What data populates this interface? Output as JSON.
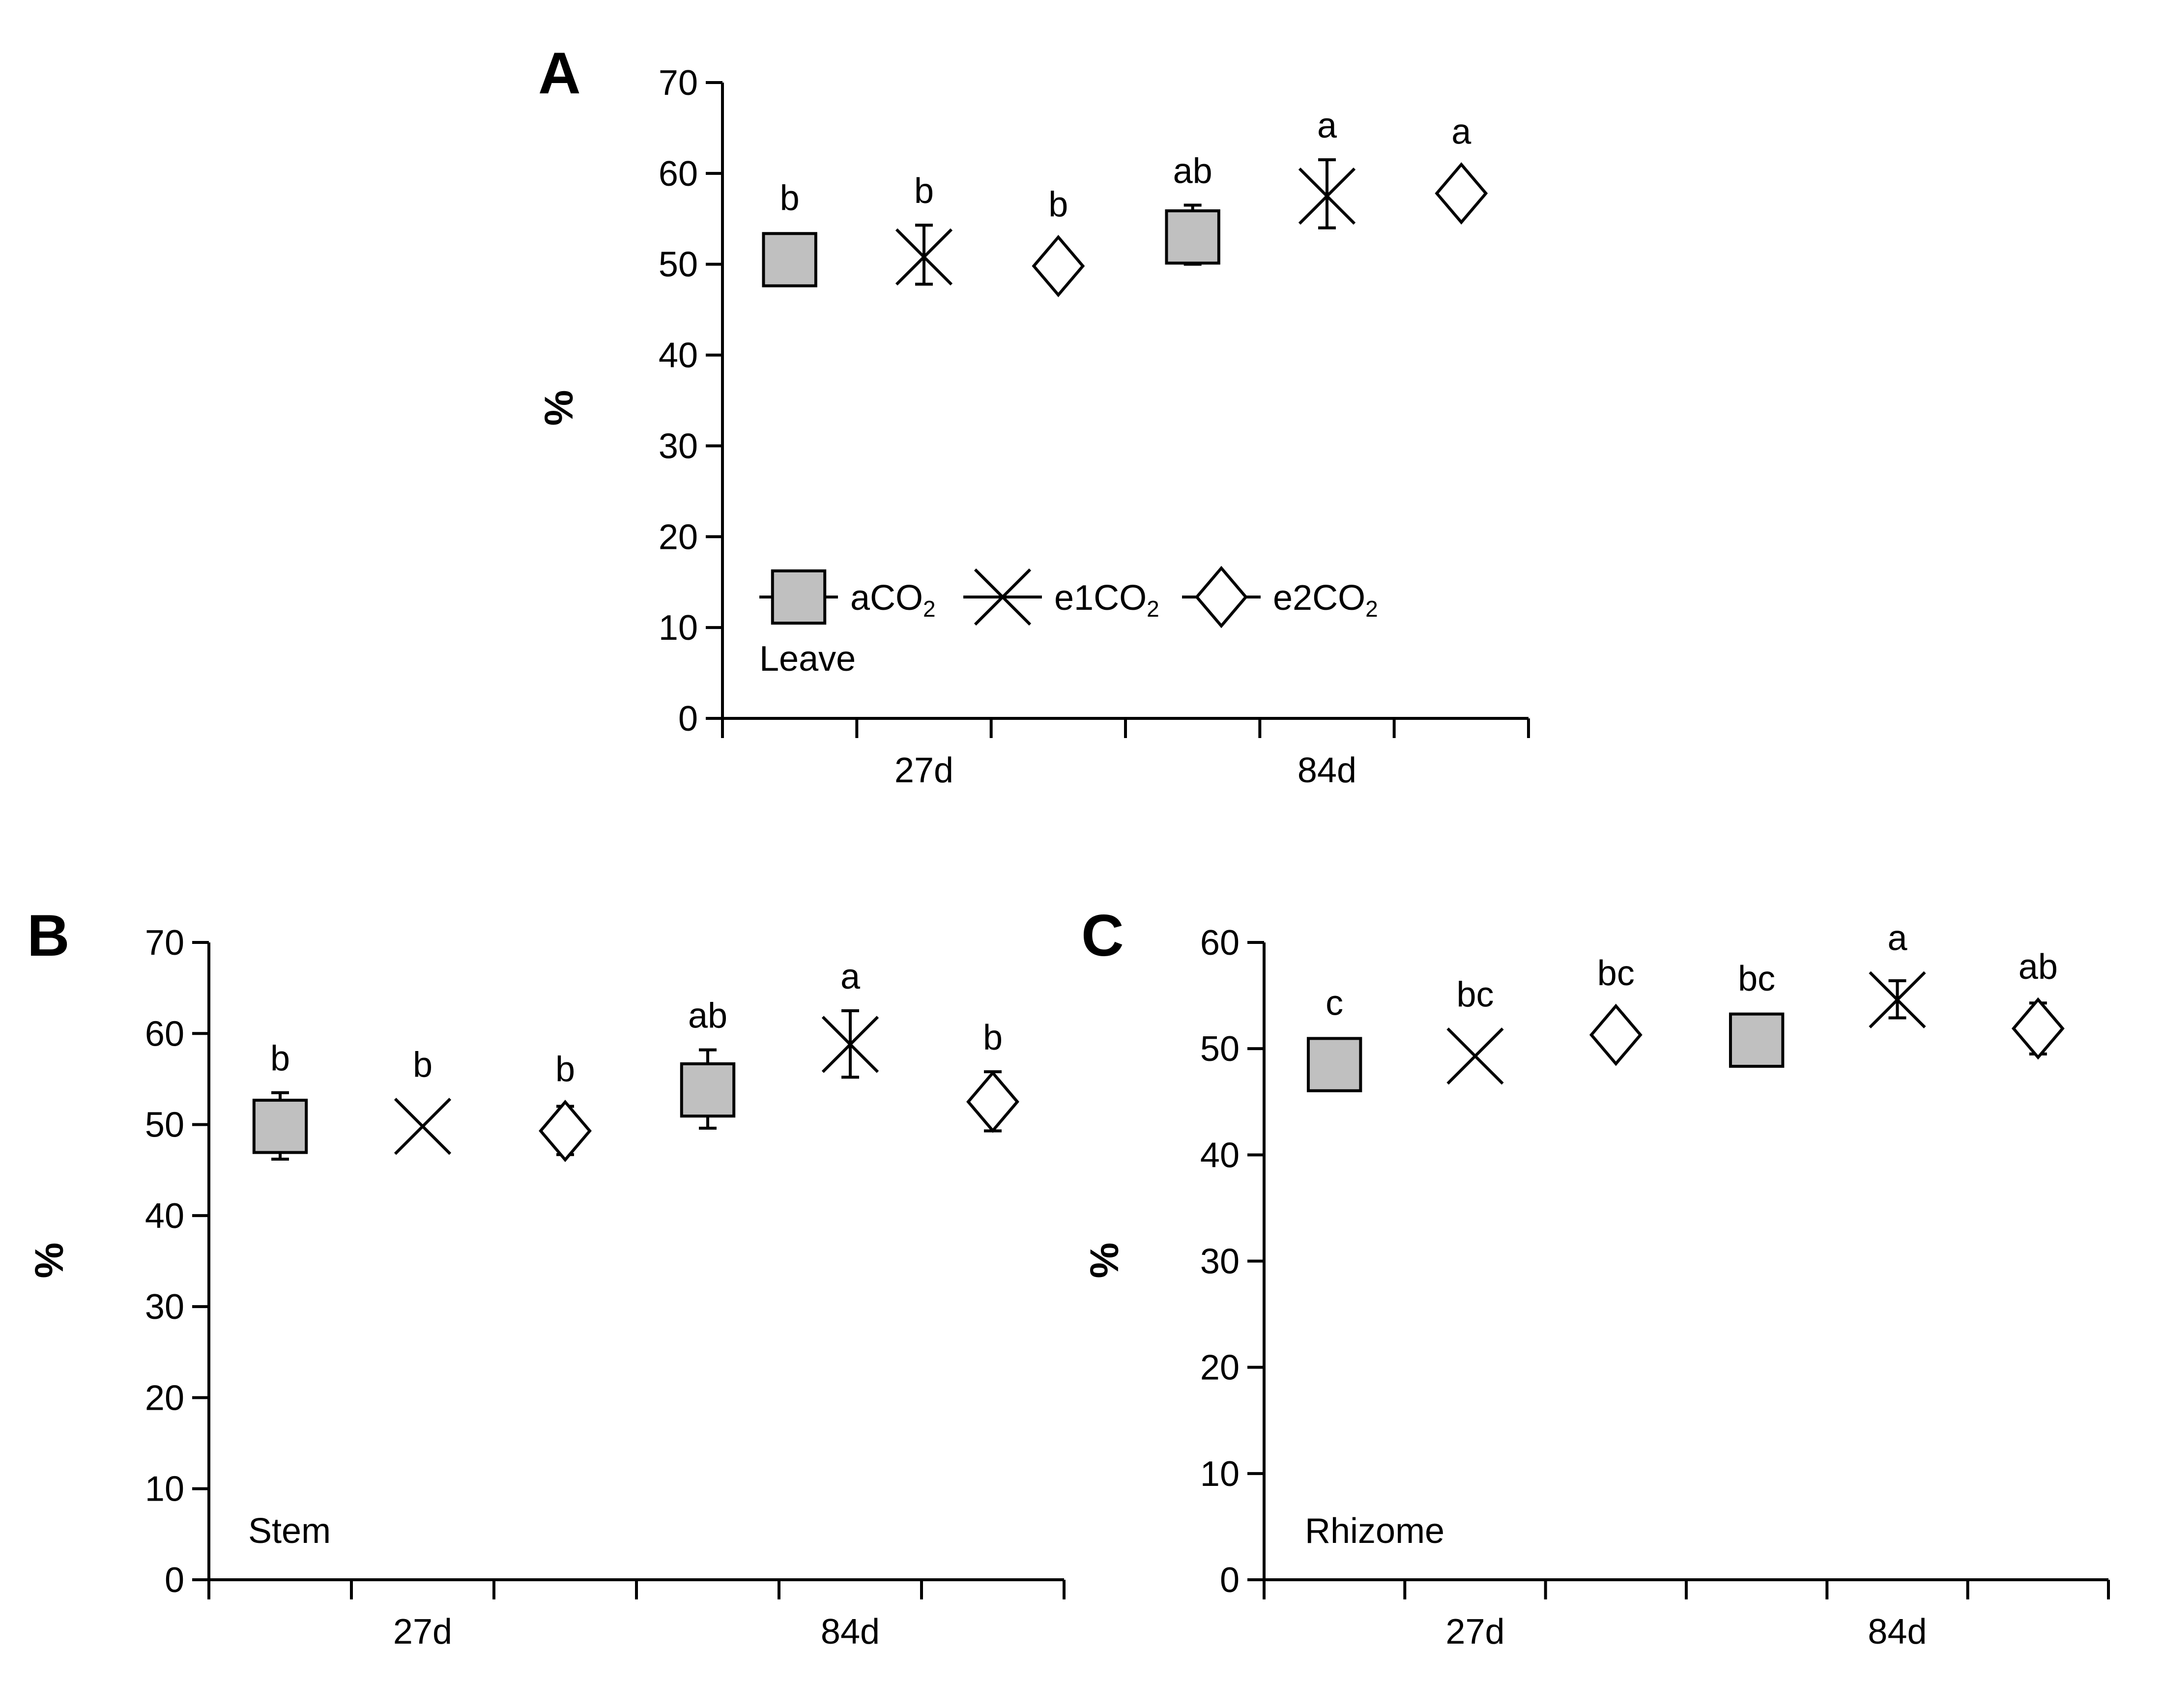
{
  "chart_data": [
    {
      "panel": "A",
      "type": "scatter",
      "subtitle": "Leave",
      "ylabel": "%",
      "ylim": [
        0,
        70
      ],
      "yticks": [
        "0",
        "10",
        "20",
        "30",
        "40",
        "50",
        "60",
        "70"
      ],
      "categories": [
        "27d",
        "84d"
      ],
      "legend": {
        "position": "bottom-left",
        "entries": [
          {
            "marker": "square",
            "label": "aCO",
            "sub": "2"
          },
          {
            "marker": "x",
            "label": "e1CO",
            "sub": "2"
          },
          {
            "marker": "diamond",
            "label": "e2CO",
            "sub": "2"
          }
        ]
      },
      "series": [
        {
          "marker": "square",
          "x": [
            "27d",
            "84d"
          ],
          "y": [
            50.5,
            53.0
          ],
          "err_up": [
            2.5,
            3.5
          ],
          "err_down": [
            2.0,
            3.0
          ],
          "labels": [
            "b",
            "ab"
          ]
        },
        {
          "marker": "x",
          "x": [
            "27d",
            "84d"
          ],
          "y": [
            50.8,
            57.5
          ],
          "err_up": [
            3.5,
            4.0
          ],
          "err_down": [
            3.0,
            3.5
          ],
          "labels": [
            "b",
            "a"
          ]
        },
        {
          "marker": "diamond",
          "x": [
            "27d",
            "84d"
          ],
          "y": [
            49.8,
            57.8
          ],
          "err_up": [
            1.2,
            1.8
          ],
          "err_down": [
            1.2,
            1.5
          ],
          "labels": [
            "b",
            "a"
          ]
        }
      ]
    },
    {
      "panel": "B",
      "type": "scatter",
      "subtitle": "Stem",
      "ylabel": "%",
      "ylim": [
        0,
        70
      ],
      "yticks": [
        "0",
        "10",
        "20",
        "30",
        "40",
        "50",
        "60",
        "70"
      ],
      "categories": [
        "27d",
        "84d"
      ],
      "series": [
        {
          "marker": "square",
          "x": [
            "27d",
            "84d"
          ],
          "y": [
            49.8,
            53.8
          ],
          "err_up": [
            3.7,
            4.4
          ],
          "err_down": [
            3.6,
            4.2
          ],
          "labels": [
            "b",
            "ab"
          ]
        },
        {
          "marker": "x",
          "x": [
            "27d",
            "84d"
          ],
          "y": [
            49.8,
            58.8
          ],
          "err_up": [
            0,
            3.7
          ],
          "err_down": [
            0,
            3.6
          ],
          "labels": [
            "b",
            "a"
          ]
        },
        {
          "marker": "diamond",
          "x": [
            "27d",
            "84d"
          ],
          "y": [
            49.3,
            52.5
          ],
          "err_up": [
            2.7,
            3.3
          ],
          "err_down": [
            2.6,
            3.2
          ],
          "labels": [
            "b",
            "b"
          ]
        }
      ]
    },
    {
      "panel": "C",
      "type": "scatter",
      "subtitle": "Rhizome",
      "ylabel": "%",
      "ylim": [
        0,
        60
      ],
      "yticks": [
        "0",
        "10",
        "20",
        "30",
        "40",
        "50",
        "60"
      ],
      "categories": [
        "27d",
        "84d"
      ],
      "series": [
        {
          "marker": "square",
          "x": [
            "27d",
            "84d"
          ],
          "y": [
            48.5,
            50.8
          ],
          "err_up": [
            1.3,
            1.2
          ],
          "err_down": [
            1.2,
            1.2
          ],
          "labels": [
            "c",
            "bc"
          ]
        },
        {
          "marker": "x",
          "x": [
            "27d",
            "84d"
          ],
          "y": [
            49.3,
            54.6
          ],
          "err_up": [
            0,
            1.8
          ],
          "err_down": [
            0,
            1.7
          ],
          "labels": [
            "bc",
            "a"
          ]
        },
        {
          "marker": "diamond",
          "x": [
            "27d",
            "84d"
          ],
          "y": [
            51.3,
            51.9
          ],
          "err_up": [
            1.8,
            2.4
          ],
          "err_down": [
            1.6,
            2.4
          ],
          "labels": [
            "bc",
            "ab"
          ]
        }
      ]
    }
  ]
}
